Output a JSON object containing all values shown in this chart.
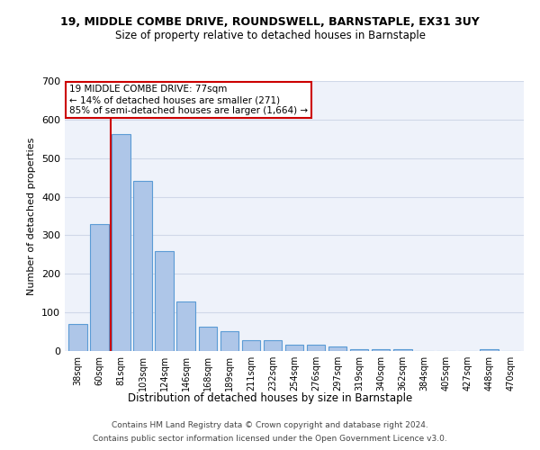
{
  "title_line1": "19, MIDDLE COMBE DRIVE, ROUNDSWELL, BARNSTAPLE, EX31 3UY",
  "title_line2": "Size of property relative to detached houses in Barnstaple",
  "xlabel": "Distribution of detached houses by size in Barnstaple",
  "ylabel": "Number of detached properties",
  "categories": [
    "38sqm",
    "60sqm",
    "81sqm",
    "103sqm",
    "124sqm",
    "146sqm",
    "168sqm",
    "189sqm",
    "211sqm",
    "232sqm",
    "254sqm",
    "276sqm",
    "297sqm",
    "319sqm",
    "340sqm",
    "362sqm",
    "384sqm",
    "405sqm",
    "427sqm",
    "448sqm",
    "470sqm"
  ],
  "values": [
    70,
    328,
    562,
    440,
    258,
    128,
    63,
    52,
    28,
    28,
    16,
    16,
    12,
    4,
    4,
    4,
    0,
    0,
    0,
    4,
    0
  ],
  "bar_color": "#aec6e8",
  "bar_edge_color": "#5b9bd5",
  "grid_color": "#d0d8e8",
  "background_color": "#eef2fa",
  "annotation_text": "19 MIDDLE COMBE DRIVE: 77sqm\n← 14% of detached houses are smaller (271)\n85% of semi-detached houses are larger (1,664) →",
  "vline_x": 1.5,
  "vline_color": "#cc0000",
  "annotation_box_color": "#ffffff",
  "annotation_box_edge": "#cc0000",
  "footer_line1": "Contains HM Land Registry data © Crown copyright and database right 2024.",
  "footer_line2": "Contains public sector information licensed under the Open Government Licence v3.0.",
  "ylim": [
    0,
    700
  ],
  "yticks": [
    0,
    100,
    200,
    300,
    400,
    500,
    600,
    700
  ]
}
